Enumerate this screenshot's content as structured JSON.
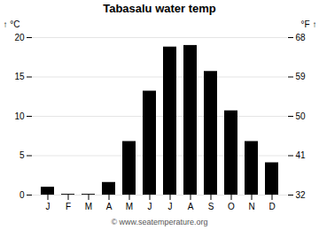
{
  "chart_data": {
    "type": "bar",
    "title": "Tabasalu water temp",
    "categories": [
      "J",
      "F",
      "M",
      "A",
      "M",
      "J",
      "J",
      "A",
      "S",
      "O",
      "N",
      "D"
    ],
    "values": [
      1.0,
      0.1,
      0.1,
      1.6,
      6.8,
      13.2,
      18.8,
      19.0,
      15.7,
      10.7,
      6.8,
      4.1
    ],
    "ylim": [
      0,
      20
    ],
    "yticks": [
      0,
      5,
      10,
      15,
      20
    ],
    "y2lim": [
      32,
      68
    ],
    "y2ticks": [
      32,
      41,
      50,
      59,
      68
    ],
    "ylabel": "°C",
    "y2label": "°F",
    "grid": true,
    "annotations": [
      "© www.seatemperature.org"
    ]
  }
}
